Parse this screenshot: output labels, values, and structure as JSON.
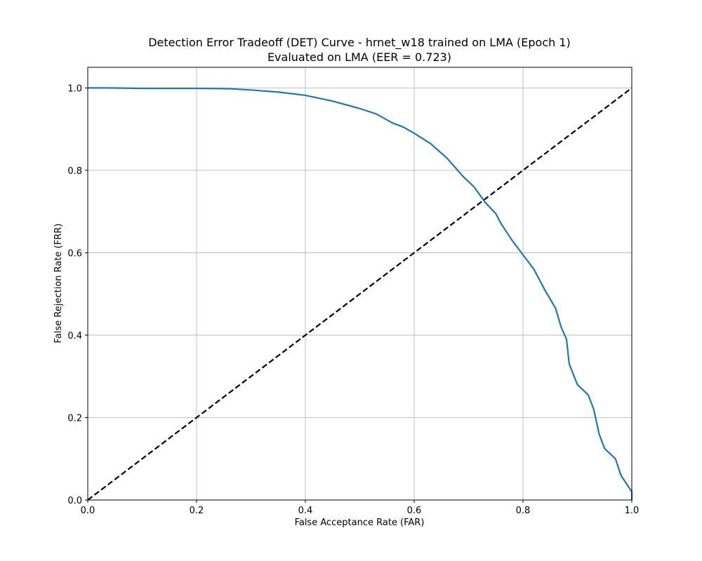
{
  "chart_data": {
    "type": "line",
    "title": "Detection Error Tradeoff (DET) Curve - hrnet_w18 trained on LMA (Epoch 1)",
    "subtitle": "Evaluated on LMA (EER = 0.723)",
    "xlabel": "False Acceptance Rate (FAR)",
    "ylabel": "False Rejection Rate (FRR)",
    "xlim": [
      0,
      1
    ],
    "ylim": [
      0,
      1.05
    ],
    "xticks": [
      "0.0",
      "0.2",
      "0.4",
      "0.6",
      "0.8",
      "1.0"
    ],
    "yticks": [
      "0.0",
      "0.2",
      "0.4",
      "0.6",
      "0.8",
      "1.0"
    ],
    "grid": true,
    "legend": "none",
    "colors": {
      "curve": "#1f77b4",
      "reference": "#000000",
      "grid": "#b0b0b0"
    },
    "series": [
      {
        "style": "solid",
        "x": [
          0.0,
          0.035,
          0.1,
          0.2,
          0.26,
          0.3,
          0.35,
          0.4,
          0.45,
          0.5,
          0.53,
          0.56,
          0.58,
          0.6,
          0.63,
          0.66,
          0.69,
          0.71,
          0.73,
          0.75,
          0.76,
          0.78,
          0.8,
          0.82,
          0.84,
          0.86,
          0.87,
          0.88,
          0.885,
          0.9,
          0.92,
          0.93,
          0.94,
          0.95,
          0.97,
          0.98,
          0.99,
          1.0,
          1.0
        ],
        "y": [
          1.0,
          1.0,
          0.999,
          0.999,
          0.998,
          0.995,
          0.99,
          0.982,
          0.968,
          0.95,
          0.937,
          0.915,
          0.905,
          0.89,
          0.865,
          0.83,
          0.785,
          0.76,
          0.723,
          0.695,
          0.67,
          0.63,
          0.595,
          0.56,
          0.51,
          0.465,
          0.42,
          0.39,
          0.33,
          0.28,
          0.255,
          0.22,
          0.16,
          0.125,
          0.1,
          0.06,
          0.04,
          0.02,
          0.0
        ]
      },
      {
        "style": "dashed",
        "x": [
          0,
          1
        ],
        "y": [
          0,
          1
        ]
      }
    ]
  }
}
